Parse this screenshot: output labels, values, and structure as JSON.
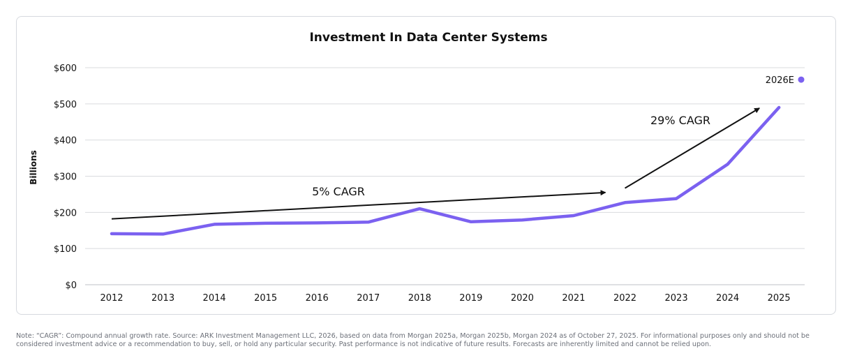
{
  "chart_data": {
    "type": "line",
    "title": "Investment In Data Center Systems",
    "ylabel": "Billions",
    "xlabel": "",
    "categories": [
      "2012",
      "2013",
      "2014",
      "2015",
      "2016",
      "2017",
      "2018",
      "2019",
      "2020",
      "2021",
      "2022",
      "2023",
      "2024",
      "2025"
    ],
    "series": [
      {
        "values": [
          141,
          140,
          167,
          170,
          171,
          173,
          210,
          174,
          179,
          191,
          227,
          238,
          333,
          490
        ]
      }
    ],
    "ylim": [
      0,
      600
    ],
    "yticks": [
      0,
      100,
      200,
      300,
      400,
      500,
      600
    ],
    "ytick_labels": [
      "$0",
      "$100",
      "$200",
      "$300",
      "$400",
      "$500",
      "$600"
    ],
    "grid": true,
    "line_color": "#7b61f0",
    "estimate_point": {
      "label": "2026E",
      "y": 567
    },
    "annotations": [
      {
        "text": "5% CAGR",
        "arrow_from": [
          "2012",
          182
        ],
        "arrow_to": [
          "2022",
          255
        ]
      },
      {
        "text": "29% CAGR",
        "arrow_from": [
          "2022",
          267
        ],
        "arrow_to": [
          "2025",
          490
        ]
      }
    ]
  },
  "footnote": "Note: “CAGR”: Compound annual growth rate. Source: ARK Investment Management LLC, 2026, based on data from Morgan 2025a, Morgan 2025b, Morgan 2024 as of October 27, 2025. For informational purposes only and should not be considered investment advice or a recommendation to buy, sell, or hold any particular security. Past performance is not indicative of future results. Forecasts are inherently limited and cannot be relied upon."
}
